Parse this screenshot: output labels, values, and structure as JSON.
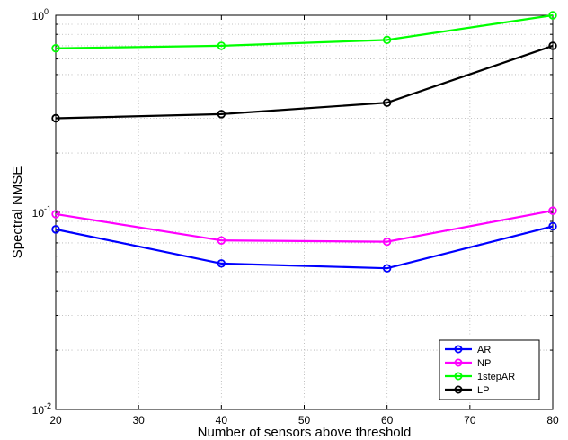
{
  "chart_data": {
    "type": "line",
    "xlabel": "Number of sensors above threshold",
    "ylabel": "Spectral NMSE",
    "y_scale": "log",
    "xlim": [
      20,
      80
    ],
    "ylim": [
      0.01,
      1
    ],
    "grid": "dotted",
    "legend_position": "bottom-right",
    "x_ticks": [
      {
        "value": 20,
        "label": "20"
      },
      {
        "value": 30,
        "label": "30"
      },
      {
        "value": 40,
        "label": "40"
      },
      {
        "value": 50,
        "label": "50"
      },
      {
        "value": 60,
        "label": "60"
      },
      {
        "value": 70,
        "label": "70"
      },
      {
        "value": 80,
        "label": "80"
      }
    ],
    "y_ticks": [
      {
        "value": 0.01,
        "base": "10",
        "exp": "-2"
      },
      {
        "value": 0.1,
        "base": "10",
        "exp": "-1"
      },
      {
        "value": 1,
        "base": "10",
        "exp": "0"
      }
    ],
    "x": [
      20,
      40,
      60,
      80
    ],
    "series": [
      {
        "name": "AR",
        "color": "#0000ff",
        "values": [
          0.082,
          0.055,
          0.052,
          0.085
        ]
      },
      {
        "name": "NP",
        "color": "#ff00ff",
        "values": [
          0.098,
          0.072,
          0.071,
          0.102
        ]
      },
      {
        "name": "1stepAR",
        "color": "#00ff00",
        "values": [
          0.68,
          0.7,
          0.75,
          1.0
        ]
      },
      {
        "name": "LP",
        "color": "#000000",
        "values": [
          0.3,
          0.315,
          0.36,
          0.7
        ]
      }
    ]
  }
}
